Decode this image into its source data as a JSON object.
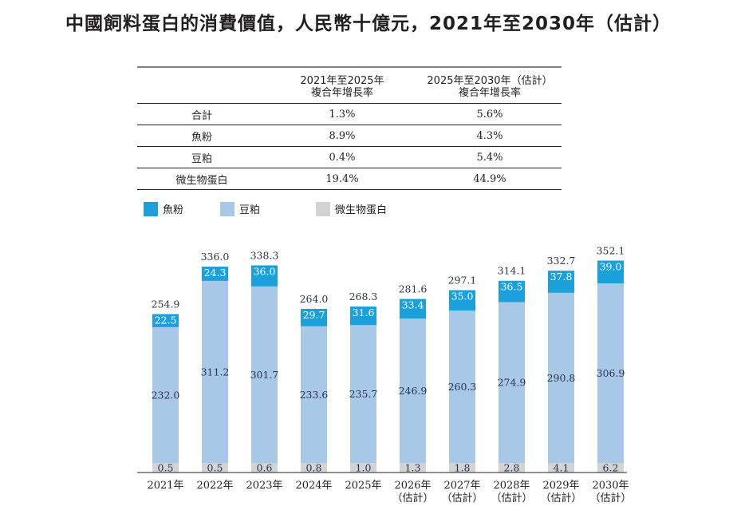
{
  "title": "中國飼料蛋白的消費價值，人民幣十億元，2021年至2030年（估計）",
  "cagr_table": {
    "columns": [
      {
        "period": "2021年至2025年",
        "label": "複合年增長率"
      },
      {
        "period": "2025年至2030年（估計）",
        "label": "複合年增長率"
      }
    ],
    "rows": [
      {
        "name": "合計",
        "v1": "1.3%",
        "v2": "5.6%"
      },
      {
        "name": "魚粉",
        "v1": "8.9%",
        "v2": "4.3%"
      },
      {
        "name": "豆粕",
        "v1": "0.4%",
        "v2": "5.4%"
      },
      {
        "name": "微生物蛋白",
        "v1": "19.4%",
        "v2": "44.9%"
      }
    ]
  },
  "chart_data": {
    "type": "bar",
    "stacked": true,
    "title": "中國飼料蛋白的消費價值，人民幣十億元，2021年至2030年（估計）",
    "categories": [
      "2021年",
      "2022年",
      "2023年",
      "2024年",
      "2025年",
      "2026年\n（估計）",
      "2027年\n（估計）",
      "2028年\n（估計）",
      "2029年\n（估計）",
      "2030年\n（估計）"
    ],
    "series": [
      {
        "name": "微生物蛋白",
        "color": "#d1d3d4",
        "values": [
          0.5,
          0.5,
          0.6,
          0.8,
          1.0,
          1.3,
          1.8,
          2.8,
          4.1,
          6.2
        ]
      },
      {
        "name": "豆粕",
        "color": "#a8c8e8",
        "values": [
          232.0,
          311.2,
          301.7,
          233.6,
          235.7,
          246.9,
          260.3,
          274.9,
          290.8,
          306.9
        ]
      },
      {
        "name": "魚粉",
        "color": "#1aa1dc",
        "values": [
          22.5,
          24.3,
          36.0,
          29.7,
          31.6,
          33.4,
          35.0,
          36.5,
          37.8,
          39.0
        ]
      }
    ],
    "totals": [
      254.9,
      336.0,
      338.3,
      264.0,
      268.3,
      281.6,
      297.1,
      314.1,
      332.7,
      352.1
    ],
    "legend": [
      {
        "name": "魚粉",
        "color": "#1aa1dc"
      },
      {
        "name": "豆粕",
        "color": "#a8c8e8"
      },
      {
        "name": "微生物蛋白",
        "color": "#d1d3d4"
      }
    ],
    "legend_position": "top-left",
    "grid": false
  }
}
